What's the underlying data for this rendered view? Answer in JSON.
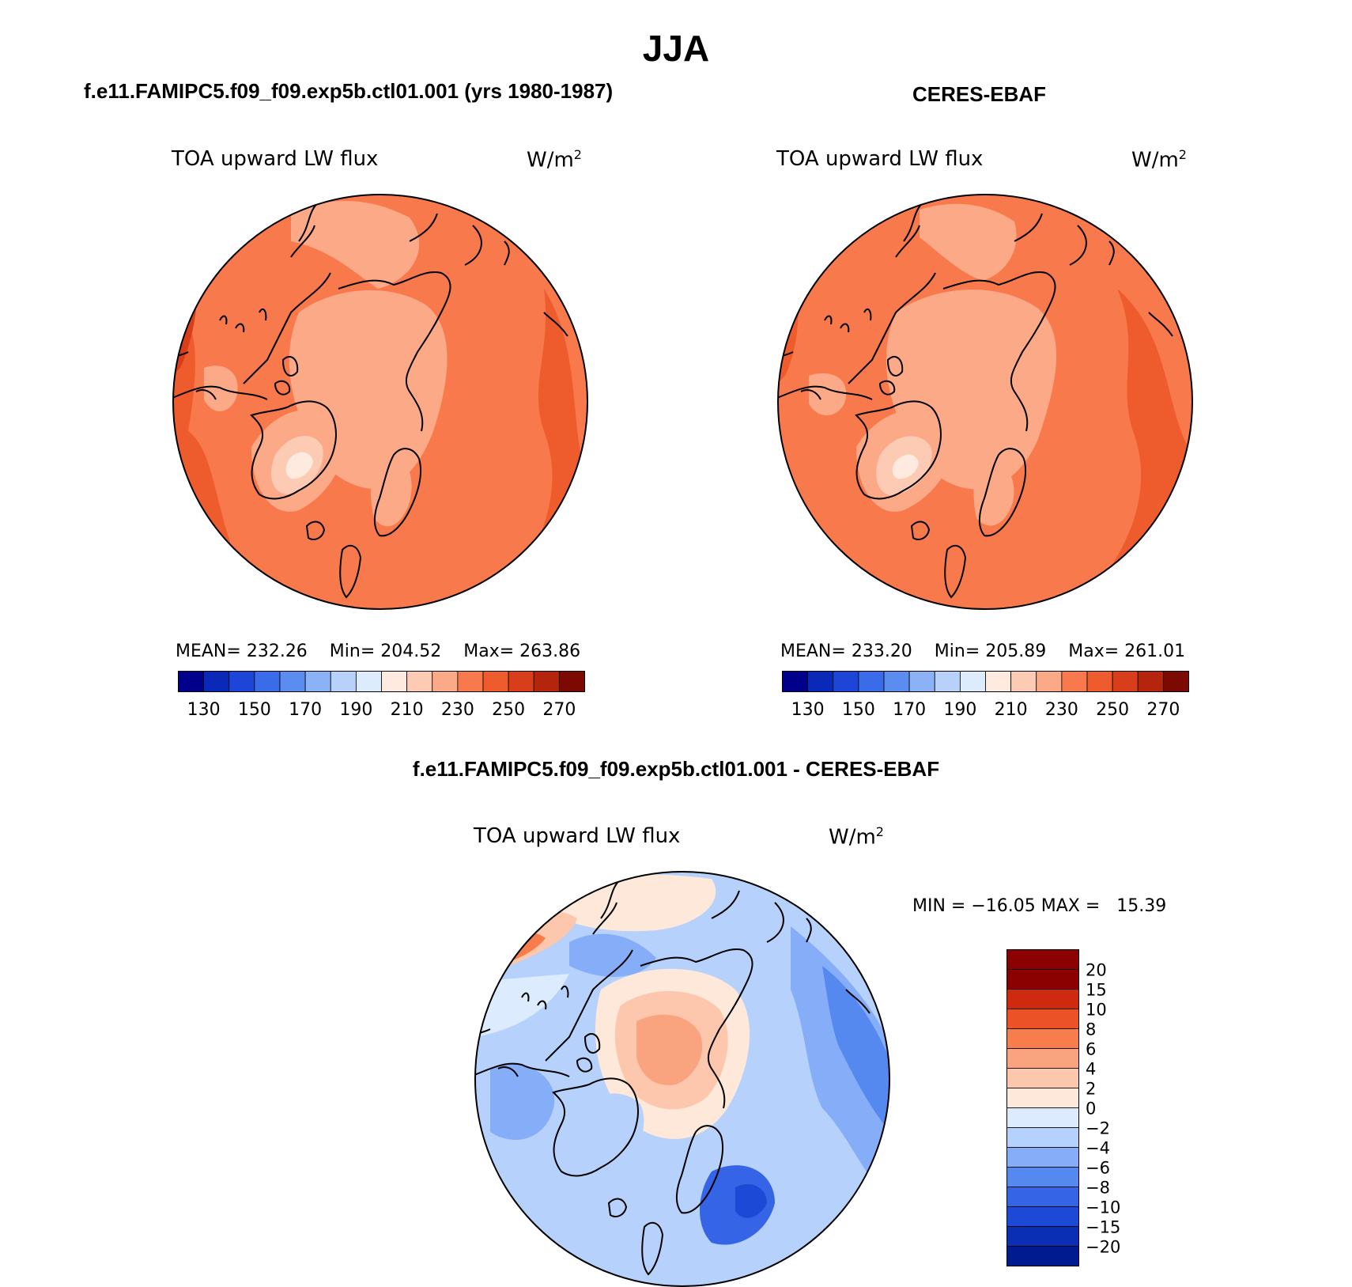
{
  "title": "JJA",
  "colors": {
    "coast": "#000000",
    "orange_scale": [
      "#00008b",
      "#0b29b8",
      "#1d46d8",
      "#3a6be8",
      "#5b8df0",
      "#8bb2f6",
      "#b7d1fa",
      "#dcecfc",
      "#feeadf",
      "#fdcab3",
      "#fca987",
      "#f8794c",
      "#ee5c2e",
      "#d93e1a",
      "#b5240c",
      "#7d0a02"
    ],
    "diff_scale": [
      "#001b8f",
      "#0a2fb4",
      "#1c4ad6",
      "#3564e6",
      "#5589f0",
      "#86adf7",
      "#b6d1fb",
      "#dcebfd",
      "#fde8d9",
      "#fcc7ad",
      "#faa47f",
      "#f77d4c",
      "#eb5226",
      "#cf2a10",
      "#8b0000"
    ]
  },
  "panels": [
    {
      "heading": "f.e11.FAMIPC5.f09_f09.exp5b.ctl01.001 (yrs 1980-1987)",
      "var_label": "TOA upward LW flux",
      "units": "W/m",
      "units_sup": "2",
      "stats": {
        "mean_label": "MEAN=",
        "mean": "232.26",
        "min_label": "Min=",
        "min": "204.52",
        "max_label": "Max=",
        "max": "263.86"
      },
      "ticks": [
        "130",
        "150",
        "170",
        "190",
        "210",
        "230",
        "250",
        "270"
      ]
    },
    {
      "heading": "CERES-EBAF",
      "var_label": "TOA upward LW flux",
      "units": "W/m",
      "units_sup": "2",
      "stats": {
        "mean_label": "MEAN=",
        "mean": "233.20",
        "min_label": "Min=",
        "min": "205.89",
        "max_label": "Max=",
        "max": "261.01"
      },
      "ticks": [
        "130",
        "150",
        "170",
        "190",
        "210",
        "230",
        "250",
        "270"
      ]
    }
  ],
  "diff": {
    "heading": "f.e11.FAMIPC5.f09_f09.exp5b.ctl01.001 - CERES-EBAF",
    "var_label": "TOA upward LW flux",
    "units": "W/m",
    "units_sup": "2",
    "minmax": "MIN = −16.05 MAX =   15.39",
    "ticks": [
      "20",
      "15",
      "10",
      "8",
      "6",
      "4",
      "2",
      "0",
      "−2",
      "−4",
      "−6",
      "−8",
      "−10",
      "−15",
      "−20"
    ]
  }
}
